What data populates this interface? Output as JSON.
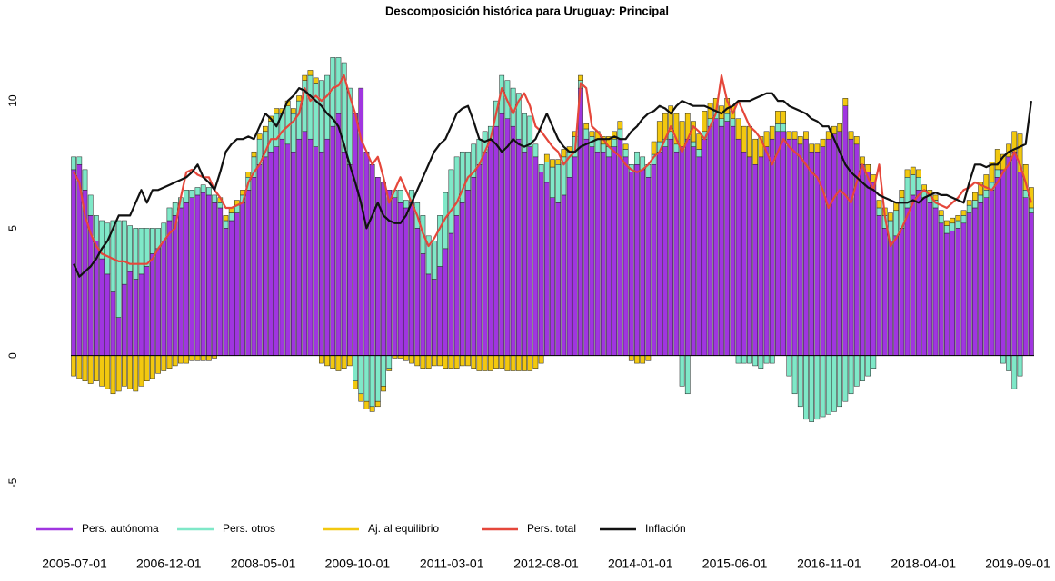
{
  "chart_data": {
    "type": "bar",
    "title": "Descomposición histórica para Uruguay: Principal",
    "categories": [
      "2005-07-01",
      null,
      null,
      null,
      null,
      null,
      null,
      null,
      null,
      null,
      null,
      null,
      null,
      null,
      null,
      null,
      null,
      "2006-12-01",
      null,
      null,
      null,
      null,
      null,
      null,
      null,
      null,
      null,
      null,
      null,
      null,
      null,
      null,
      null,
      null,
      "2008-05-01",
      null,
      null,
      null,
      null,
      null,
      null,
      null,
      null,
      null,
      null,
      null,
      null,
      null,
      null,
      null,
      null,
      "2009-10-01",
      null,
      null,
      null,
      null,
      null,
      null,
      null,
      null,
      null,
      null,
      null,
      null,
      null,
      null,
      null,
      null,
      "2011-03-01",
      null,
      null,
      null,
      null,
      null,
      null,
      null,
      null,
      null,
      null,
      null,
      null,
      null,
      null,
      null,
      null,
      "2012-08-01",
      null,
      null,
      null,
      null,
      null,
      null,
      null,
      null,
      null,
      null,
      null,
      null,
      null,
      null,
      null,
      null,
      "2014-01-01",
      null,
      null,
      null,
      null,
      null,
      null,
      null,
      null,
      null,
      null,
      null,
      null,
      null,
      null,
      null,
      null,
      "2015-06-01",
      null,
      null,
      null,
      null,
      null,
      null,
      null,
      null,
      null,
      null,
      null,
      null,
      null,
      null,
      null,
      null,
      "2016-11-01",
      null,
      null,
      null,
      null,
      null,
      null,
      null,
      null,
      null,
      null,
      null,
      null,
      null,
      null,
      null,
      null,
      "2018-04-01",
      null,
      null,
      null,
      null,
      null,
      null,
      null,
      null,
      null,
      null,
      null,
      null,
      null,
      null,
      null,
      null,
      "2019-09-01"
    ],
    "ylim": [
      -5.5,
      12
    ],
    "yticks": [
      -5,
      0,
      5,
      10
    ],
    "series": [
      {
        "name": "Pers. autónoma",
        "type": "bar",
        "color": "#a035e0",
        "values": [
          7.3,
          7.5,
          6.5,
          5.5,
          4.5,
          3.8,
          3.2,
          2.5,
          1.5,
          2.8,
          3.3,
          3.0,
          3.2,
          3.5,
          4.0,
          4.2,
          4.5,
          5.3,
          5.5,
          5.8,
          6.0,
          6.2,
          6.3,
          6.4,
          6.3,
          6.0,
          5.8,
          5.0,
          5.3,
          5.6,
          6.0,
          6.5,
          7.0,
          7.5,
          7.8,
          8.0,
          8.2,
          8.5,
          8.3,
          8.0,
          8.5,
          8.8,
          8.5,
          8.2,
          8.0,
          8.5,
          9.0,
          9.5,
          8.0,
          7.5,
          9.5,
          10.5,
          8.0,
          7.5,
          7.0,
          6.8,
          6.5,
          6.2,
          6.0,
          5.8,
          6.0,
          5.0,
          4.0,
          3.2,
          3.0,
          3.5,
          4.2,
          4.8,
          5.5,
          6.0,
          6.5,
          7.0,
          7.5,
          8.0,
          8.5,
          9.0,
          9.5,
          9.3,
          9.0,
          8.5,
          8.0,
          8.2,
          7.8,
          7.2,
          6.8,
          6.2,
          6.0,
          6.3,
          7.0,
          7.8,
          10.5,
          8.5,
          8.2,
          8.0,
          8.0,
          7.8,
          8.2,
          8.5,
          7.8,
          7.2,
          7.5,
          7.3,
          7.0,
          7.5,
          8.0,
          8.2,
          8.5,
          8.0,
          8.2,
          8.5,
          8.2,
          7.8,
          8.5,
          9.0,
          9.3,
          9.0,
          9.2,
          9.0,
          8.5,
          8.0,
          7.8,
          7.5,
          7.8,
          8.2,
          8.5,
          8.8,
          8.8,
          8.5,
          8.5,
          8.3,
          8.5,
          8.0,
          8.0,
          8.2,
          8.5,
          8.7,
          8.8,
          9.8,
          8.5,
          8.3,
          7.5,
          7.2,
          6.8,
          5.5,
          5.0,
          4.5,
          4.7,
          5.0,
          5.8,
          6.3,
          6.5,
          6.2,
          6.0,
          5.8,
          5.2,
          4.8,
          4.9,
          5.0,
          5.2,
          5.6,
          5.8,
          6.0,
          6.2,
          6.5,
          7.0,
          7.3,
          7.8,
          8.0,
          7.2,
          6.2,
          5.6
        ]
      },
      {
        "name": "Pers. otros",
        "type": "bar",
        "color": "#7fe8c8",
        "values": [
          0.5,
          0.3,
          0.8,
          0.8,
          1.0,
          1.5,
          2.0,
          2.8,
          3.8,
          2.5,
          1.8,
          2.0,
          1.8,
          1.5,
          1.0,
          0.8,
          0.7,
          0.5,
          0.5,
          0.4,
          0.5,
          0.3,
          0.3,
          0.3,
          0.3,
          0.3,
          0.2,
          0.3,
          0.3,
          0.3,
          0.3,
          0.5,
          0.8,
          1.0,
          1.0,
          1.2,
          1.3,
          1.0,
          1.5,
          1.5,
          1.5,
          2.0,
          2.5,
          2.5,
          2.8,
          2.5,
          2.7,
          2.2,
          3.5,
          3.0,
          -1.0,
          -1.5,
          -1.8,
          -2.0,
          -1.8,
          -1.2,
          -0.5,
          0.3,
          0.5,
          0.3,
          0.5,
          1.0,
          1.5,
          1.5,
          1.5,
          2.0,
          2.2,
          2.5,
          2.3,
          2.0,
          1.5,
          1.3,
          1.0,
          0.8,
          0.5,
          1.0,
          1.5,
          1.5,
          1.5,
          1.8,
          1.5,
          1.2,
          0.5,
          0.3,
          0.8,
          1.2,
          1.5,
          1.5,
          1.0,
          0.8,
          0.3,
          0.4,
          0.4,
          0.5,
          0.3,
          0.4,
          0.3,
          0.4,
          0.3,
          0.3,
          0.5,
          0.5,
          0.5,
          0.4,
          0.4,
          0.3,
          0.3,
          0.3,
          -1.2,
          -1.5,
          0.2,
          0.3,
          0.3,
          0.3,
          0.3,
          0.3,
          0.3,
          0.3,
          -0.3,
          -0.3,
          -0.3,
          -0.4,
          -0.5,
          -0.3,
          -0.3,
          0.3,
          0.3,
          -0.8,
          -1.5,
          -2.0,
          -2.5,
          -2.6,
          -2.5,
          -2.4,
          -2.3,
          -2.2,
          -2.0,
          -1.8,
          -1.5,
          -1.2,
          -1.0,
          -0.8,
          -0.5,
          0.3,
          0.5,
          0.8,
          1.0,
          1.2,
          1.2,
          0.8,
          0.5,
          0.3,
          0.3,
          0.3,
          0.3,
          0.3,
          0.3,
          0.3,
          0.3,
          0.3,
          0.3,
          0.3,
          0.3,
          0.3,
          0.3,
          -0.3,
          -0.6,
          -1.3,
          -0.8,
          0.3,
          0.2
        ]
      },
      {
        "name": "Aj. al equilibrio",
        "type": "bar",
        "color": "#f2c80f",
        "values": [
          -0.8,
          -0.9,
          -1.0,
          -1.1,
          -1.0,
          -1.2,
          -1.3,
          -1.5,
          -1.4,
          -1.2,
          -1.3,
          -1.4,
          -1.2,
          -1.0,
          -0.9,
          -0.7,
          -0.6,
          -0.5,
          -0.4,
          -0.3,
          -0.3,
          -0.2,
          -0.2,
          -0.2,
          -0.2,
          -0.1,
          0.2,
          0.2,
          0.2,
          0.2,
          0.2,
          0.2,
          0.2,
          0.2,
          0.2,
          0.2,
          0.2,
          0.2,
          0.2,
          0.2,
          0.2,
          0.2,
          0.2,
          0.2,
          -0.3,
          -0.4,
          -0.5,
          -0.6,
          -0.5,
          -0.4,
          -0.3,
          -0.3,
          -0.3,
          -0.2,
          -0.2,
          -0.2,
          -0.1,
          -0.1,
          -0.1,
          -0.2,
          -0.3,
          -0.4,
          -0.5,
          -0.5,
          -0.4,
          -0.4,
          -0.5,
          -0.5,
          -0.5,
          -0.4,
          -0.4,
          -0.5,
          -0.6,
          -0.6,
          -0.6,
          -0.5,
          -0.5,
          -0.6,
          -0.6,
          -0.6,
          -0.6,
          -0.6,
          -0.5,
          -0.3,
          0.3,
          0.3,
          0.2,
          0.3,
          0.2,
          0.2,
          0.2,
          0.2,
          0.2,
          0.3,
          0.3,
          0.4,
          0.3,
          0.3,
          0.2,
          -0.2,
          -0.3,
          -0.3,
          -0.2,
          0.5,
          0.8,
          1.0,
          1.0,
          1.2,
          1.0,
          1.0,
          0.8,
          0.6,
          0.8,
          0.6,
          0.5,
          0.5,
          0.6,
          0.5,
          0.8,
          1.0,
          1.2,
          1.0,
          0.8,
          0.6,
          0.5,
          0.5,
          0.5,
          0.3,
          0.3,
          0.3,
          0.3,
          0.3,
          0.3,
          0.3,
          0.3,
          0.3,
          0.3,
          0.3,
          0.3,
          0.3,
          0.3,
          0.3,
          0.3,
          0.3,
          0.3,
          0.3,
          0.3,
          0.3,
          0.3,
          0.3,
          0.3,
          0.2,
          0.2,
          0.2,
          0.2,
          0.2,
          0.2,
          0.2,
          0.2,
          0.2,
          0.3,
          0.5,
          0.6,
          0.8,
          0.8,
          0.6,
          0.5,
          0.8,
          1.5,
          1.0,
          0.8
        ]
      },
      {
        "name": "Pers. total",
        "type": "line",
        "color": "#e5473b",
        "values": [
          7.2,
          6.8,
          5.5,
          4.8,
          4.3,
          4.0,
          3.9,
          3.8,
          3.7,
          3.7,
          3.6,
          3.6,
          3.6,
          3.6,
          3.8,
          4.2,
          4.5,
          4.8,
          5.0,
          6.2,
          7.2,
          7.3,
          7.1,
          7.0,
          7.0,
          6.5,
          6.2,
          5.8,
          5.8,
          5.9,
          6.0,
          6.8,
          7.2,
          7.5,
          8.0,
          8.5,
          8.5,
          8.8,
          9.0,
          9.2,
          9.5,
          10.5,
          10.0,
          10.2,
          10.0,
          10.2,
          10.5,
          10.6,
          11.0,
          10.2,
          9.5,
          8.5,
          8.0,
          7.5,
          7.8,
          7.0,
          6.0,
          6.5,
          7.0,
          6.5,
          6.0,
          5.5,
          4.8,
          4.3,
          4.6,
          5.0,
          5.4,
          5.7,
          6.0,
          6.5,
          7.0,
          7.2,
          7.5,
          8.0,
          8.5,
          9.5,
          10.5,
          10.0,
          9.5,
          10.0,
          10.3,
          9.8,
          9.0,
          8.8,
          8.5,
          8.2,
          8.0,
          7.5,
          7.8,
          8.0,
          10.7,
          10.5,
          9.0,
          8.8,
          8.5,
          8.2,
          8.0,
          7.8,
          7.5,
          7.3,
          7.2,
          7.3,
          7.5,
          7.8,
          8.0,
          8.5,
          9.0,
          8.5,
          8.0,
          8.5,
          9.0,
          8.8,
          8.5,
          9.0,
          9.5,
          11.0,
          10.0,
          9.5,
          10.0,
          9.5,
          9.0,
          8.8,
          8.5,
          8.0,
          7.5,
          8.0,
          8.5,
          8.2,
          8.0,
          7.8,
          7.5,
          7.2,
          7.0,
          6.5,
          5.8,
          6.2,
          6.5,
          6.3,
          6.0,
          6.8,
          7.5,
          7.0,
          6.5,
          7.5,
          5.5,
          4.3,
          4.6,
          5.0,
          5.5,
          6.0,
          6.3,
          6.5,
          6.3,
          6.0,
          5.9,
          5.8,
          6.0,
          6.2,
          6.5,
          6.6,
          6.8,
          6.7,
          6.6,
          6.5,
          6.8,
          7.2,
          7.5,
          8.0,
          7.5,
          6.8,
          6.0
        ]
      },
      {
        "name": "Inflación",
        "type": "line",
        "color": "#111111",
        "values": [
          3.6,
          3.1,
          3.3,
          3.5,
          3.8,
          4.2,
          4.5,
          5.0,
          5.5,
          5.5,
          5.5,
          6.0,
          6.5,
          6.0,
          6.5,
          6.5,
          6.6,
          6.7,
          6.8,
          6.9,
          7.0,
          7.2,
          7.5,
          7.0,
          6.8,
          6.5,
          7.2,
          8.0,
          8.3,
          8.5,
          8.5,
          8.6,
          8.5,
          9.0,
          9.5,
          9.3,
          9.0,
          9.5,
          10.0,
          10.2,
          10.5,
          10.4,
          10.2,
          10.0,
          9.8,
          9.5,
          9.3,
          9.0,
          8.3,
          7.5,
          6.8,
          6.0,
          5.0,
          5.5,
          6.0,
          5.5,
          5.3,
          5.2,
          5.2,
          5.5,
          6.0,
          6.5,
          7.0,
          7.5,
          8.0,
          8.3,
          8.5,
          9.0,
          9.5,
          9.7,
          9.8,
          9.2,
          8.5,
          8.4,
          8.5,
          8.3,
          8.0,
          8.2,
          8.5,
          8.3,
          8.2,
          8.3,
          8.5,
          9.0,
          9.5,
          9.0,
          8.5,
          8.2,
          8.0,
          8.0,
          8.2,
          8.3,
          8.4,
          8.5,
          8.5,
          8.5,
          8.6,
          8.5,
          8.5,
          8.8,
          9.0,
          9.3,
          9.5,
          9.6,
          9.8,
          9.7,
          9.5,
          9.8,
          10.0,
          9.9,
          9.8,
          9.8,
          9.8,
          9.7,
          9.6,
          9.5,
          9.7,
          9.8,
          10.0,
          10.0,
          10.0,
          10.1,
          10.2,
          10.3,
          10.3,
          10.0,
          10.0,
          9.8,
          9.7,
          9.6,
          9.5,
          9.3,
          9.2,
          9.0,
          9.0,
          8.5,
          8.0,
          7.5,
          7.2,
          7.0,
          6.8,
          6.6,
          6.5,
          6.3,
          6.2,
          6.1,
          6.0,
          6.0,
          6.0,
          6.1,
          6.0,
          6.2,
          6.3,
          6.4,
          6.3,
          6.3,
          6.2,
          6.1,
          6.0,
          6.8,
          7.5,
          7.5,
          7.4,
          7.5,
          7.5,
          7.8,
          8.0,
          8.1,
          8.2,
          8.3,
          10.0
        ]
      }
    ]
  }
}
